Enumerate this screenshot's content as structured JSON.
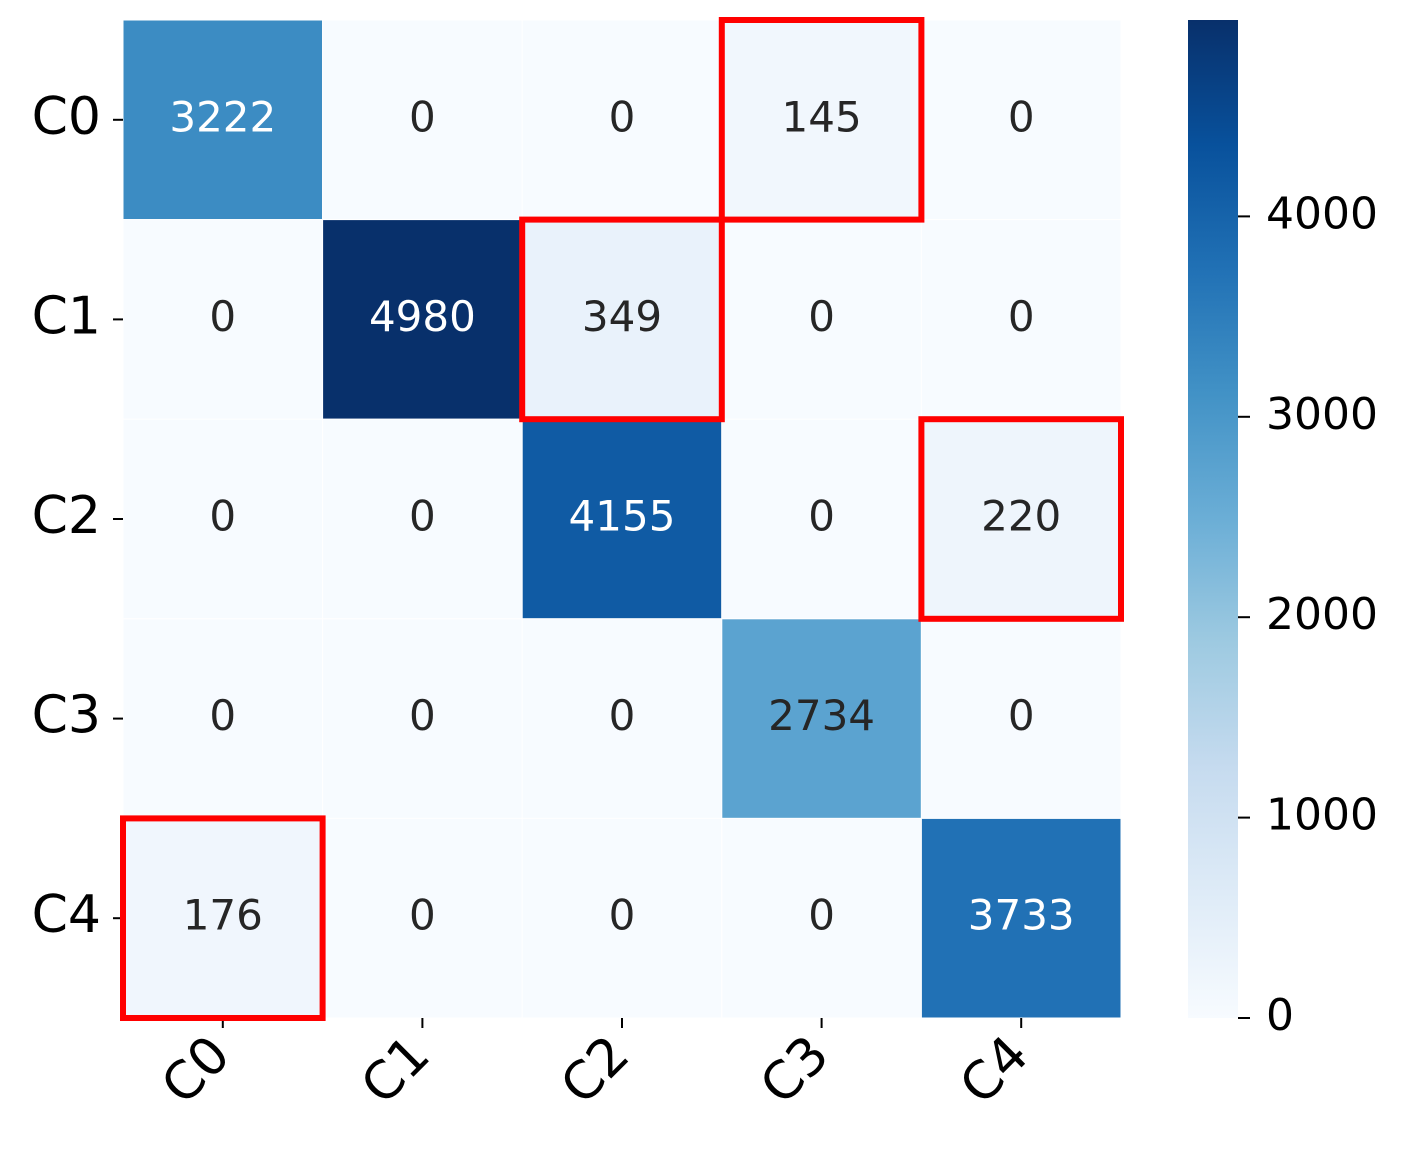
{
  "chart_data": {
    "type": "heatmap",
    "x_categories": [
      "C0",
      "C1",
      "C2",
      "C3",
      "C4"
    ],
    "y_categories": [
      "C0",
      "C1",
      "C2",
      "C3",
      "C4"
    ],
    "values": [
      [
        3222,
        0,
        0,
        145,
        0
      ],
      [
        0,
        4980,
        349,
        0,
        0
      ],
      [
        0,
        0,
        4155,
        0,
        220
      ],
      [
        0,
        0,
        0,
        2734,
        0
      ],
      [
        176,
        0,
        0,
        0,
        3733
      ]
    ],
    "colormap": "Blues",
    "clim": [
      0,
      4980
    ],
    "cticks": [
      0,
      1000,
      2000,
      3000,
      4000
    ],
    "highlights": [
      [
        0,
        3
      ],
      [
        1,
        2
      ],
      [
        2,
        4
      ],
      [
        4,
        0
      ]
    ],
    "highlight_color": "#ff0000"
  }
}
